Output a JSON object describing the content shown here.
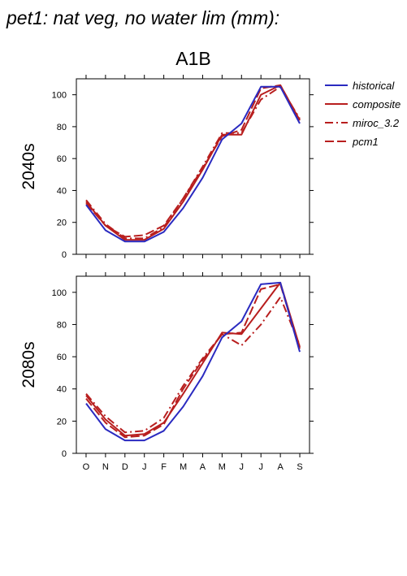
{
  "title": "pet1: nat veg, no water lim (mm):",
  "scenario": "A1B",
  "colors": {
    "historical": "#2a2ac0",
    "models": "#b81e1e",
    "axis": "#000000"
  },
  "legend": [
    {
      "label": "historical",
      "color": "#2a2ac0",
      "dash": "solid"
    },
    {
      "label": "composite",
      "color": "#b81e1e",
      "dash": "solid"
    },
    {
      "label": "miroc_3.2",
      "color": "#b81e1e",
      "dash": "dashdot"
    },
    {
      "label": "pcm1",
      "color": "#b81e1e",
      "dash": "dash"
    }
  ],
  "chart_data": [
    {
      "type": "line",
      "period_label": "2040s",
      "categories": [
        "O",
        "N",
        "D",
        "J",
        "F",
        "M",
        "A",
        "M",
        "J",
        "J",
        "A",
        "S"
      ],
      "ylim": [
        0,
        110
      ],
      "yticks": [
        0,
        20,
        40,
        60,
        80,
        100
      ],
      "series": [
        {
          "name": "historical",
          "dash": "solid",
          "values": [
            31,
            15,
            8,
            8,
            14,
            29,
            48,
            72,
            82,
            105,
            105,
            82
          ]
        },
        {
          "name": "composite",
          "dash": "solid",
          "values": [
            33,
            18,
            9,
            9,
            16,
            33,
            53,
            75,
            75,
            100,
            106,
            84
          ]
        },
        {
          "name": "miroc_3.2",
          "dash": "dashdot",
          "values": [
            34,
            19,
            10,
            10,
            17,
            35,
            55,
            76,
            76,
            97,
            105,
            85
          ]
        },
        {
          "name": "pcm1",
          "dash": "dash",
          "values": [
            32,
            18,
            11,
            12,
            18,
            35,
            54,
            74,
            78,
            104,
            106,
            84
          ]
        }
      ]
    },
    {
      "type": "line",
      "period_label": "2080s",
      "categories": [
        "O",
        "N",
        "D",
        "J",
        "F",
        "M",
        "A",
        "M",
        "J",
        "J",
        "A",
        "S"
      ],
      "ylim": [
        0,
        110
      ],
      "yticks": [
        0,
        20,
        40,
        60,
        80,
        100
      ],
      "series": [
        {
          "name": "historical",
          "dash": "solid",
          "values": [
            31,
            15,
            8,
            8,
            14,
            29,
            48,
            72,
            82,
            105,
            106,
            63
          ]
        },
        {
          "name": "composite",
          "dash": "solid",
          "values": [
            36,
            21,
            11,
            12,
            19,
            37,
            56,
            75,
            74,
            90,
            106,
            66
          ]
        },
        {
          "name": "miroc_3.2",
          "dash": "dashdot",
          "values": [
            37,
            23,
            13,
            14,
            22,
            42,
            59,
            74,
            67,
            80,
            97,
            67
          ]
        },
        {
          "name": "pcm1",
          "dash": "dash",
          "values": [
            34,
            19,
            10,
            11,
            18,
            40,
            58,
            74,
            75,
            102,
            105,
            65
          ]
        }
      ]
    }
  ]
}
